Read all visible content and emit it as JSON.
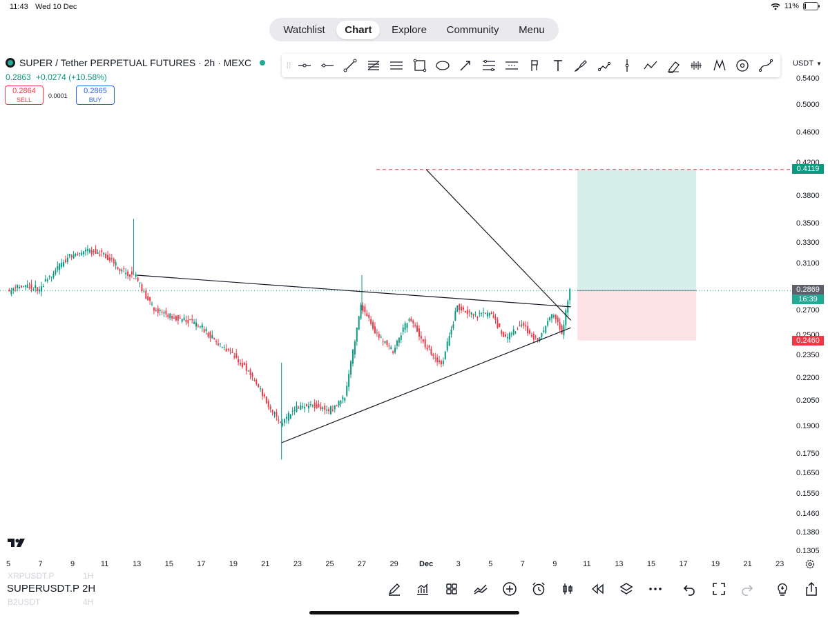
{
  "status_bar": {
    "time": "11:43",
    "date": "Wed 10 Dec",
    "battery": "11%",
    "battery_level": 0.11
  },
  "nav": {
    "tabs": [
      {
        "label": "Watchlist",
        "active": false
      },
      {
        "label": "Chart",
        "active": true
      },
      {
        "label": "Explore",
        "active": false
      },
      {
        "label": "Community",
        "active": false
      },
      {
        "label": "Menu",
        "active": false
      }
    ]
  },
  "symbol": {
    "title": "SUPER / Tether PERPETUAL FUTURES · 2h · MEXC",
    "price": "0.2863",
    "change": "+0.0274 (+10.58%)",
    "sell_price": "0.2864",
    "sell_label": "SELL",
    "spread": "0.0001",
    "buy_price": "0.2865",
    "buy_label": "BUY"
  },
  "drawing_tools": [
    "crosshair-line-icon",
    "horizontal-line-icon",
    "trend-line-icon",
    "fib-retracement-icon",
    "parallel-channel-icon",
    "rectangle-icon",
    "ellipse-icon",
    "arrow-icon",
    "price-range-icon",
    "date-range-icon",
    "long-position-icon",
    "vertical-text-icon",
    "brush-icon",
    "path-icon",
    "vertical-line-icon",
    "polyline-icon",
    "eraser-icon",
    "measure-icon",
    "pattern-icon",
    "circle-target-icon",
    "curve-icon"
  ],
  "currency": "USDT",
  "chart_data": {
    "type": "candlestick",
    "symbol": "SUPER / Tether PERPETUAL FUTURES",
    "interval": "2h",
    "exchange": "MEXC",
    "y_ticks": [
      "0.5400",
      "0.5000",
      "0.4600",
      "0.4200",
      "0.3800",
      "0.3500",
      "0.3300",
      "0.3100",
      "0.2700",
      "0.2500",
      "0.2350",
      "0.2200",
      "0.2050",
      "0.1900",
      "0.1750",
      "0.1650",
      "0.1550",
      "0.1460",
      "0.1380",
      "0.1305"
    ],
    "x_ticks": [
      "5",
      "7",
      "9",
      "11",
      "13",
      "15",
      "17",
      "19",
      "21",
      "23",
      "25",
      "27",
      "29",
      "Dec",
      "3",
      "5",
      "7",
      "9",
      "11",
      "13",
      "15",
      "17",
      "19",
      "21",
      "23"
    ],
    "price_badges": [
      {
        "value": "0.4119",
        "color": "#089981",
        "meaning": "take-profit"
      },
      {
        "value": "0.2869",
        "color": "#5d606b",
        "meaning": "last-price"
      },
      {
        "value": "16:39",
        "color": "#22ab94",
        "meaning": "bar-countdown"
      },
      {
        "value": "0.2460",
        "color": "#f23645",
        "meaning": "stop-loss"
      }
    ],
    "path": [
      {
        "t": "5",
        "p": 0.285
      },
      {
        "t": "6",
        "p": 0.292
      },
      {
        "t": "7",
        "p": 0.288
      },
      {
        "t": "8",
        "p": 0.305
      },
      {
        "t": "9",
        "p": 0.318
      },
      {
        "t": "10",
        "p": 0.322
      },
      {
        "t": "11",
        "p": 0.32
      },
      {
        "t": "12",
        "p": 0.305
      },
      {
        "t": "13",
        "p": 0.298
      },
      {
        "t": "14",
        "p": 0.273
      },
      {
        "t": "15",
        "p": 0.266
      },
      {
        "t": "16",
        "p": 0.262
      },
      {
        "t": "17",
        "p": 0.258
      },
      {
        "t": "18",
        "p": 0.245
      },
      {
        "t": "19",
        "p": 0.236
      },
      {
        "t": "20",
        "p": 0.225
      },
      {
        "t": "21",
        "p": 0.207
      },
      {
        "t": "22",
        "p": 0.191
      },
      {
        "t": "23",
        "p": 0.201
      },
      {
        "t": "24",
        "p": 0.203
      },
      {
        "t": "25",
        "p": 0.199
      },
      {
        "t": "26",
        "p": 0.207
      },
      {
        "t": "27",
        "p": 0.274
      },
      {
        "t": "28",
        "p": 0.25
      },
      {
        "t": "29",
        "p": 0.238
      },
      {
        "t": "30",
        "p": 0.265
      },
      {
        "t": "Dec",
        "p": 0.243
      },
      {
        "t": "2",
        "p": 0.228
      },
      {
        "t": "3",
        "p": 0.273
      },
      {
        "t": "4",
        "p": 0.265
      },
      {
        "t": "5",
        "p": 0.268
      },
      {
        "t": "6",
        "p": 0.248
      },
      {
        "t": "7",
        "p": 0.258
      },
      {
        "t": "8",
        "p": 0.246
      },
      {
        "t": "9",
        "p": 0.268
      },
      {
        "t": "9.5",
        "p": 0.252
      },
      {
        "t": "10",
        "p": 0.2869
      }
    ],
    "lines": {
      "upper_trend": [
        {
          "t": "13",
          "p": 0.3
        },
        {
          "t": "10",
          "p": 0.273
        }
      ],
      "lower_trend": [
        {
          "t": "22",
          "p": 0.181
        },
        {
          "t": "10",
          "p": 0.256
        }
      ],
      "descending": [
        {
          "t": "Dec",
          "p": 0.4119
        },
        {
          "t": "10",
          "p": 0.262
        }
      ],
      "target": 0.4119
    },
    "position": {
      "entry": 0.2869,
      "target": 0.4119,
      "stop": 0.246
    }
  },
  "bottom": {
    "symbol": "SUPERUSDT.P",
    "interval": "2H",
    "ghost_prev_symbol": "XRPUSDT.P",
    "ghost_prev_interval": "1H",
    "ghost_next_symbol": "B2USDT",
    "ghost_next_interval": "4H",
    "icons": [
      "pen-icon",
      "indicators-icon",
      "layout-grid-icon",
      "compare-icon",
      "add-circle-icon",
      "alarm-icon",
      "chart-type-icon",
      "replay-icon",
      "layers-icon",
      "more-icon",
      "undo-icon",
      "fullscreen-icon",
      "redo-icon",
      "idea-bulb-icon",
      "share-icon"
    ]
  }
}
